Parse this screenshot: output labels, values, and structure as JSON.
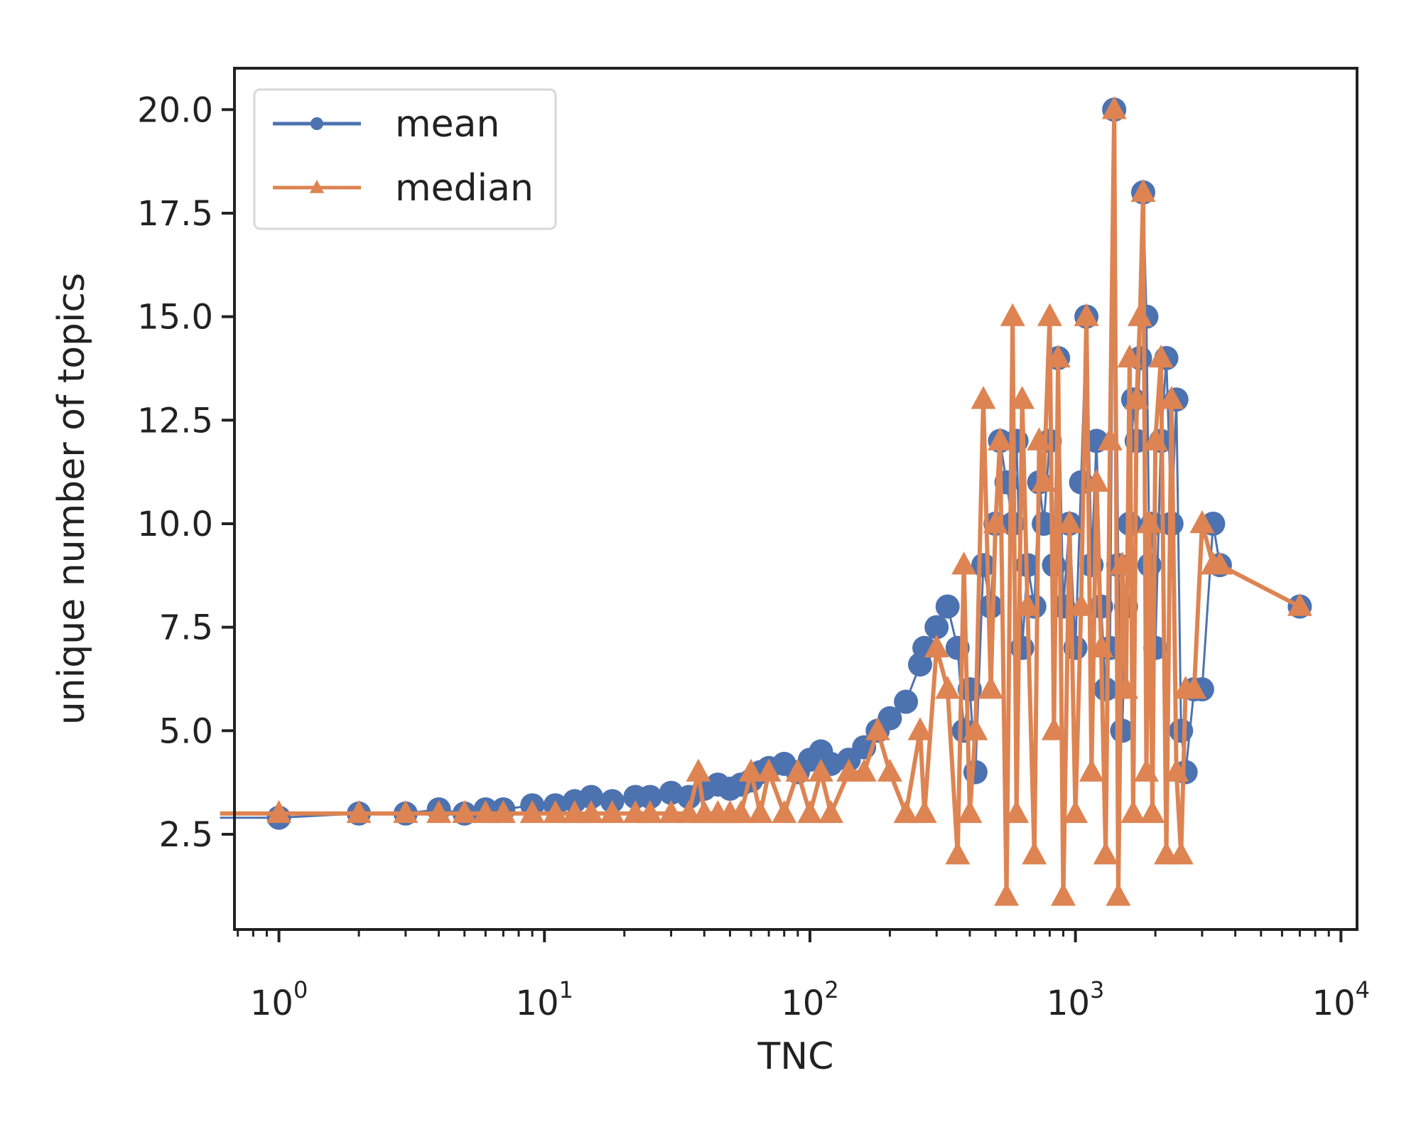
{
  "chart_data": {
    "type": "line",
    "xlabel": "TNC",
    "ylabel": "unique number of topics",
    "xscale": "log",
    "xlim": [
      0.68,
      11500
    ],
    "ylim": [
      0.2,
      21
    ],
    "x_ticks": [
      {
        "base": "10",
        "exp": "0",
        "value": 1
      },
      {
        "base": "10",
        "exp": "1",
        "value": 10
      },
      {
        "base": "10",
        "exp": "2",
        "value": 100
      },
      {
        "base": "10",
        "exp": "3",
        "value": 1000
      },
      {
        "base": "10",
        "exp": "4",
        "value": 10000
      }
    ],
    "y_ticks": [
      "2.5",
      "5.0",
      "7.5",
      "10.0",
      "12.5",
      "15.0",
      "17.5",
      "20.0"
    ],
    "y_tick_values": [
      2.5,
      5.0,
      7.5,
      10.0,
      12.5,
      15.0,
      17.5,
      20.0
    ],
    "legend": {
      "position": "upper-left",
      "entries": [
        "mean",
        "median"
      ]
    },
    "grid": false,
    "series": [
      {
        "name": "mean",
        "color": "#4c72b0",
        "marker": "circle",
        "x": [
          0.6,
          1,
          2,
          3,
          4,
          5,
          6,
          7,
          9,
          11,
          13,
          15,
          18,
          22,
          25,
          30,
          35,
          40,
          45,
          50,
          55,
          60,
          65,
          70,
          80,
          90,
          100,
          110,
          120,
          140,
          160,
          180,
          200,
          230,
          260,
          270,
          300,
          330,
          360,
          380,
          400,
          420,
          450,
          480,
          500,
          520,
          550,
          580,
          600,
          630,
          660,
          700,
          730,
          760,
          800,
          830,
          860,
          900,
          950,
          1000,
          1050,
          1100,
          1150,
          1200,
          1250,
          1300,
          1350,
          1400,
          1450,
          1500,
          1550,
          1600,
          1650,
          1700,
          1750,
          1800,
          1850,
          1900,
          1950,
          2000,
          2100,
          2200,
          2300,
          2400,
          2500,
          2600,
          2800,
          3000,
          3300,
          3500,
          7000
        ],
        "y": [
          2.9,
          2.9,
          3.0,
          3.0,
          3.1,
          3.0,
          3.1,
          3.1,
          3.2,
          3.2,
          3.3,
          3.4,
          3.3,
          3.4,
          3.4,
          3.5,
          3.4,
          3.6,
          3.7,
          3.6,
          3.7,
          3.8,
          4.0,
          4.1,
          4.2,
          4.0,
          4.3,
          4.5,
          4.2,
          4.3,
          4.6,
          5.0,
          5.3,
          5.7,
          6.6,
          7.0,
          7.5,
          8.0,
          7.0,
          5.0,
          6.0,
          4.0,
          9.0,
          8.0,
          10.0,
          12.0,
          11.0,
          10.0,
          12.0,
          7.0,
          9.0,
          8.0,
          11.0,
          10.0,
          12.0,
          9.0,
          14.0,
          8.0,
          10.0,
          7.0,
          11.0,
          15.0,
          9.0,
          12.0,
          8.0,
          6.0,
          7.0,
          20.0,
          9.0,
          5.0,
          8.0,
          10.0,
          13.0,
          12.0,
          14.0,
          18.0,
          15.0,
          9.0,
          10.0,
          7.0,
          12.0,
          14.0,
          10.0,
          13.0,
          5.0,
          4.0,
          6.0,
          6.0,
          10.0,
          9.0,
          8.0
        ]
      },
      {
        "name": "median",
        "color": "#dd8452",
        "marker": "triangle",
        "x": [
          0.6,
          1,
          2,
          3,
          4,
          5,
          6,
          7,
          9,
          11,
          13,
          15,
          18,
          22,
          25,
          30,
          35,
          38,
          40,
          45,
          50,
          55,
          60,
          65,
          70,
          80,
          90,
          100,
          110,
          120,
          140,
          160,
          180,
          200,
          230,
          260,
          270,
          300,
          330,
          360,
          380,
          400,
          420,
          450,
          480,
          500,
          520,
          550,
          580,
          600,
          630,
          660,
          700,
          730,
          760,
          800,
          830,
          860,
          900,
          950,
          1000,
          1050,
          1100,
          1150,
          1200,
          1250,
          1300,
          1350,
          1400,
          1450,
          1500,
          1550,
          1600,
          1650,
          1700,
          1750,
          1800,
          1850,
          1900,
          1950,
          2000,
          2100,
          2200,
          2300,
          2400,
          2500,
          2600,
          2800,
          3000,
          3300,
          3500,
          7000
        ],
        "y": [
          3.0,
          3.0,
          3.0,
          3.0,
          3.0,
          3.0,
          3.0,
          3.0,
          3.0,
          3.0,
          3.0,
          3.0,
          3.0,
          3.0,
          3.0,
          3.0,
          3.0,
          4.0,
          3.0,
          3.0,
          3.0,
          3.0,
          4.0,
          3.0,
          4.0,
          3.0,
          4.0,
          3.0,
          4.0,
          3.0,
          4.0,
          4.0,
          5.0,
          4.0,
          3.0,
          5.0,
          3.0,
          7.0,
          6.0,
          2.0,
          9.0,
          3.0,
          5.0,
          13.0,
          6.0,
          10.0,
          12.0,
          1.0,
          15.0,
          3.0,
          13.0,
          8.0,
          2.0,
          12.0,
          11.0,
          15.0,
          5.0,
          14.0,
          1.0,
          10.0,
          3.0,
          8.0,
          15.0,
          4.0,
          11.0,
          7.0,
          2.0,
          12.0,
          20.0,
          1.0,
          9.0,
          6.0,
          14.0,
          3.0,
          13.0,
          15.0,
          18.0,
          4.0,
          10.0,
          3.0,
          12.0,
          14.0,
          2.0,
          13.0,
          4.0,
          2.0,
          6.0,
          6.0,
          10.0,
          9.0,
          9.0,
          8.0
        ]
      }
    ]
  }
}
